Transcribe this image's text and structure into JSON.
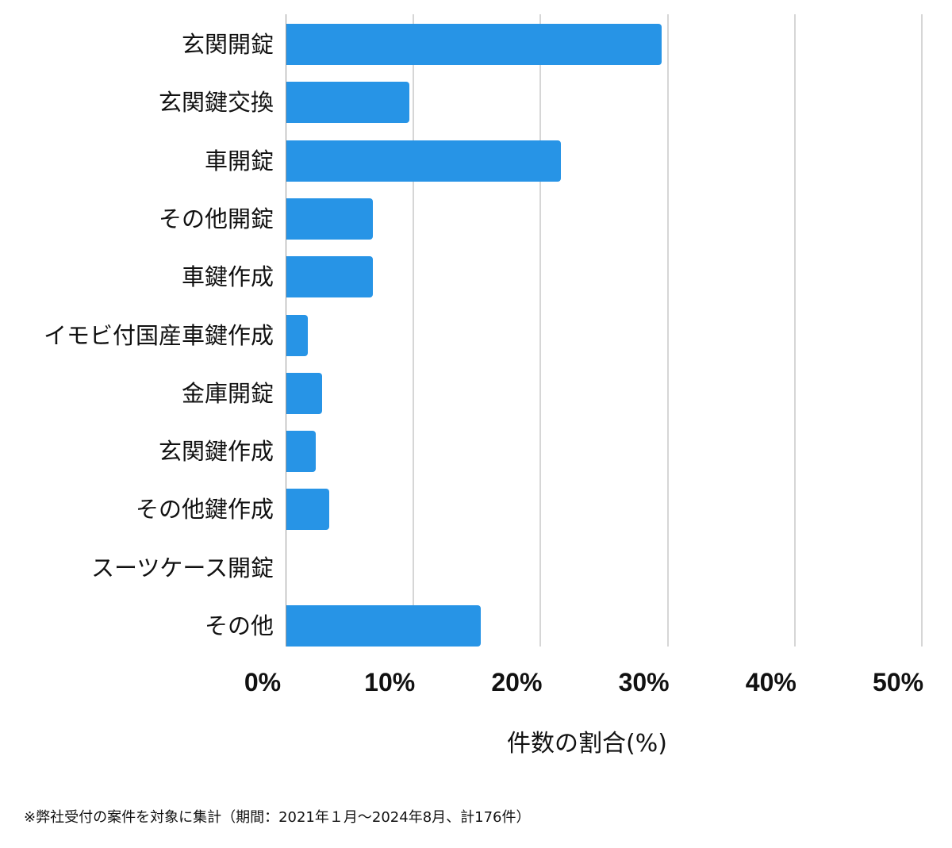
{
  "chart_data": {
    "type": "bar",
    "orientation": "horizontal",
    "categories": [
      "玄関開錠",
      "玄関鍵交換",
      "車開錠",
      "その他開錠",
      "車鍵作成",
      "イモビ付国産車鍵作成",
      "金庫開錠",
      "玄関鍵作成",
      "その他鍵作成",
      "スーツケース開錠",
      "その他"
    ],
    "values": [
      29.5,
      9.7,
      21.6,
      6.8,
      6.8,
      1.7,
      2.8,
      2.3,
      3.4,
      0,
      15.3
    ],
    "title": "",
    "xlabel": "件数の割合(%)",
    "ylabel": "",
    "xlim": [
      0,
      50
    ],
    "xticks": [
      "0%",
      "10%",
      "20%",
      "30%",
      "40%",
      "50%"
    ],
    "grid": true,
    "legend": null,
    "bar_color": "#2794e6",
    "footnote": "※弊社受付の案件を対象に集計（期間：2021年１月〜2024年8月、計176件）"
  },
  "labels": {
    "x_title": "件数の割合(%)",
    "footnote": "※弊社受付の案件を対象に集計（期間：2021年１月〜2024年8月、計176件）"
  }
}
